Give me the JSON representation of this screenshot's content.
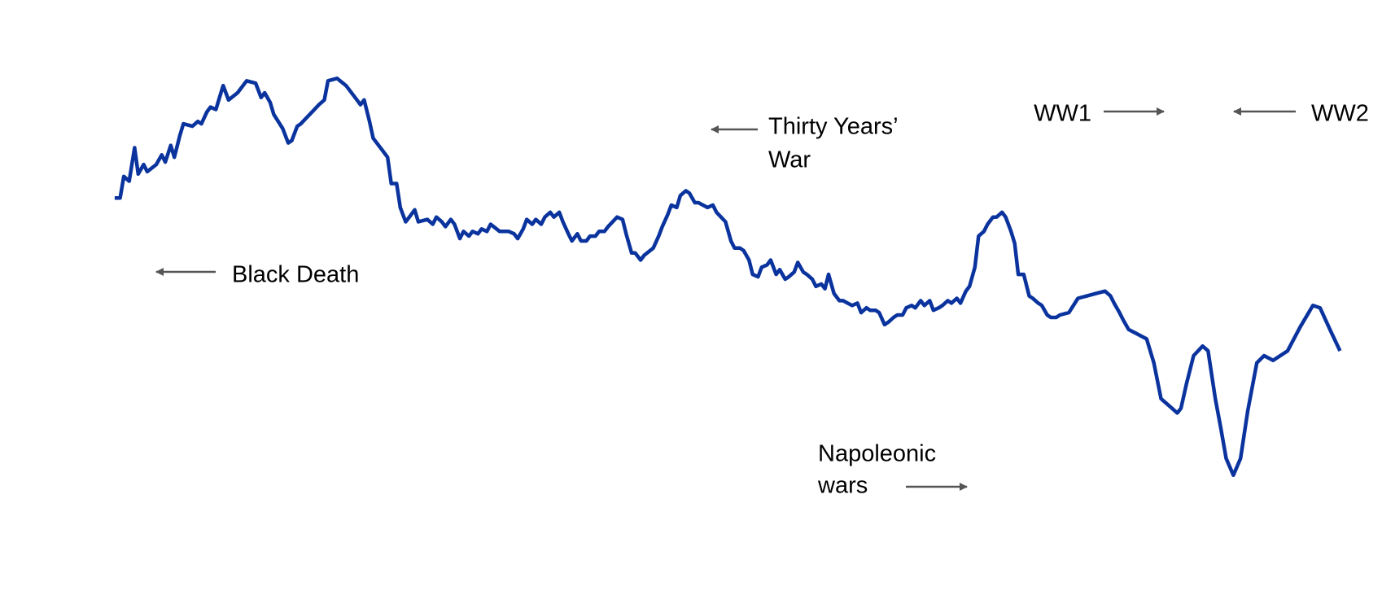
{
  "chart_data": {
    "type": "line",
    "color": "#0a339e",
    "grid": true,
    "xlim": [
      1300,
      2017
    ],
    "ylim": [
      -6,
      16
    ],
    "xticks": [
      1300,
      1350,
      1400,
      1450,
      1500,
      1550,
      1600,
      1650,
      1700,
      1750,
      1800,
      1850,
      1900,
      1950,
      2000
    ],
    "yticks": [
      -6,
      -4,
      -2,
      0,
      2,
      4,
      6,
      8,
      10,
      12,
      14,
      16
    ],
    "x": [
      1327,
      1330,
      1332,
      1335,
      1338,
      1340,
      1343,
      1345,
      1350,
      1353,
      1355,
      1358,
      1360,
      1363,
      1365,
      1370,
      1373,
      1375,
      1378,
      1380,
      1383,
      1385,
      1387,
      1390,
      1395,
      1400,
      1405,
      1408,
      1410,
      1413,
      1415,
      1420,
      1423,
      1425,
      1428,
      1430,
      1435,
      1440,
      1443,
      1445,
      1450,
      1455,
      1460,
      1463,
      1465,
      1468,
      1470,
      1475,
      1478,
      1480,
      1483,
      1485,
      1488,
      1490,
      1493,
      1495,
      1500,
      1503,
      1505,
      1508,
      1510,
      1513,
      1515,
      1518,
      1520,
      1523,
      1525,
      1528,
      1530,
      1533,
      1535,
      1540,
      1545,
      1548,
      1550,
      1553,
      1555,
      1558,
      1560,
      1563,
      1565,
      1568,
      1570,
      1573,
      1575,
      1578,
      1580,
      1583,
      1585,
      1588,
      1590,
      1593,
      1595,
      1598,
      1600,
      1605,
      1608,
      1610,
      1613,
      1615,
      1618,
      1620,
      1625,
      1628,
      1630,
      1633,
      1635,
      1638,
      1640,
      1643,
      1645,
      1648,
      1650,
      1655,
      1658,
      1660,
      1665,
      1668,
      1670,
      1673,
      1675,
      1678,
      1680,
      1683,
      1685,
      1688,
      1690,
      1693,
      1695,
      1698,
      1700,
      1703,
      1705,
      1708,
      1710,
      1713,
      1715,
      1718,
      1720,
      1722,
      1725,
      1728,
      1730,
      1735,
      1738,
      1740,
      1743,
      1745,
      1748,
      1750,
      1753,
      1755,
      1758,
      1760,
      1763,
      1765,
      1768,
      1770,
      1773,
      1775,
      1778,
      1780,
      1783,
      1785,
      1788,
      1790,
      1793,
      1795,
      1798,
      1800,
      1803,
      1805,
      1808,
      1810,
      1813,
      1815,
      1818,
      1820,
      1823,
      1825,
      1827,
      1830,
      1833,
      1835,
      1838,
      1840,
      1843,
      1845,
      1848,
      1850,
      1855,
      1860,
      1865,
      1870,
      1875,
      1878,
      1880,
      1883,
      1885,
      1888,
      1898,
      1902,
      1906,
      1912,
      1915,
      1917,
      1920,
      1924,
      1929,
      1932,
      1936,
      1939,
      1942,
      1946,
      1950,
      1954,
      1959,
      1963,
      1968,
      1976,
      1983,
      1990,
      1994,
      2000,
      2005
    ],
    "values": [
      8.4,
      8.4,
      9.3,
      9.1,
      10.5,
      9.4,
      9.8,
      9.5,
      9.8,
      10.2,
      9.9,
      10.6,
      10.1,
      11.0,
      11.5,
      11.4,
      11.6,
      11.5,
      12.0,
      12.2,
      12.1,
      12.6,
      13.1,
      12.5,
      12.8,
      13.3,
      13.2,
      12.6,
      12.8,
      12.4,
      11.9,
      11.3,
      10.7,
      10.8,
      11.4,
      11.5,
      11.9,
      12.3,
      12.5,
      13.3,
      13.4,
      13.1,
      12.6,
      12.3,
      12.5,
      11.6,
      10.9,
      10.4,
      10.1,
      9.0,
      9.0,
      8.0,
      7.4,
      7.6,
      7.9,
      7.4,
      7.5,
      7.3,
      7.6,
      7.4,
      7.2,
      7.5,
      7.3,
      6.7,
      7.0,
      6.8,
      7.0,
      6.9,
      7.1,
      7.0,
      7.3,
      7.0,
      7.0,
      6.9,
      6.7,
      7.1,
      7.5,
      7.3,
      7.5,
      7.3,
      7.6,
      7.8,
      7.6,
      7.8,
      7.4,
      6.9,
      6.6,
      6.9,
      6.6,
      6.6,
      6.8,
      6.8,
      7.0,
      7.0,
      7.2,
      7.6,
      7.5,
      6.9,
      6.1,
      6.1,
      5.8,
      6.0,
      6.3,
      6.8,
      7.2,
      7.7,
      8.1,
      8.0,
      8.5,
      8.7,
      8.6,
      8.2,
      8.2,
      8.0,
      8.1,
      7.8,
      7.4,
      6.6,
      6.3,
      6.3,
      6.2,
      5.8,
      5.2,
      5.1,
      5.5,
      5.6,
      5.8,
      5.2,
      5.4,
      5.0,
      5.1,
      5.3,
      5.7,
      5.3,
      5.2,
      5.0,
      4.7,
      4.8,
      4.6,
      5.2,
      4.4,
      4.1,
      4.1,
      3.9,
      4.0,
      3.6,
      3.8,
      3.7,
      3.7,
      3.6,
      3.1,
      3.2,
      3.4,
      3.5,
      3.5,
      3.8,
      3.9,
      3.8,
      4.1,
      3.9,
      4.1,
      3.7,
      3.8,
      3.9,
      4.1,
      4.0,
      4.2,
      4.0,
      4.5,
      4.7,
      5.5,
      6.8,
      7.0,
      7.3,
      7.6,
      7.6,
      7.8,
      7.6,
      7.0,
      6.5,
      5.2,
      5.2,
      4.3,
      4.2,
      4.0,
      3.9,
      3.5,
      3.4,
      3.4,
      3.5,
      3.6,
      4.2,
      4.3,
      4.4,
      4.5,
      4.3,
      4.0,
      3.6,
      3.3,
      2.9,
      2.5,
      1.5,
      0,
      -0.4,
      -0.6,
      -0.4,
      0.6,
      1.8,
      2.2,
      2.0,
      0,
      -1.2,
      -2.5,
      -3.2,
      -2.5,
      -0.5,
      1.5,
      1.8,
      1.6,
      2.0,
      3.0,
      3.9,
      3.8,
      2.8,
      2.0
    ],
    "annotations": [
      {
        "label": [
          "Black Death"
        ],
        "start": 1347,
        "end": 1352
      },
      {
        "label": [
          "Thirty Years’",
          "War"
        ],
        "start": 1618,
        "end": 1650
      },
      {
        "label": [
          "Napoleonic",
          "wars"
        ],
        "start": 1803,
        "end": 1816
      },
      {
        "label": [
          "WW1"
        ],
        "start": 1914,
        "end": 1919
      },
      {
        "label": [
          "WW2"
        ],
        "start": 1939,
        "end": 1946
      }
    ]
  }
}
